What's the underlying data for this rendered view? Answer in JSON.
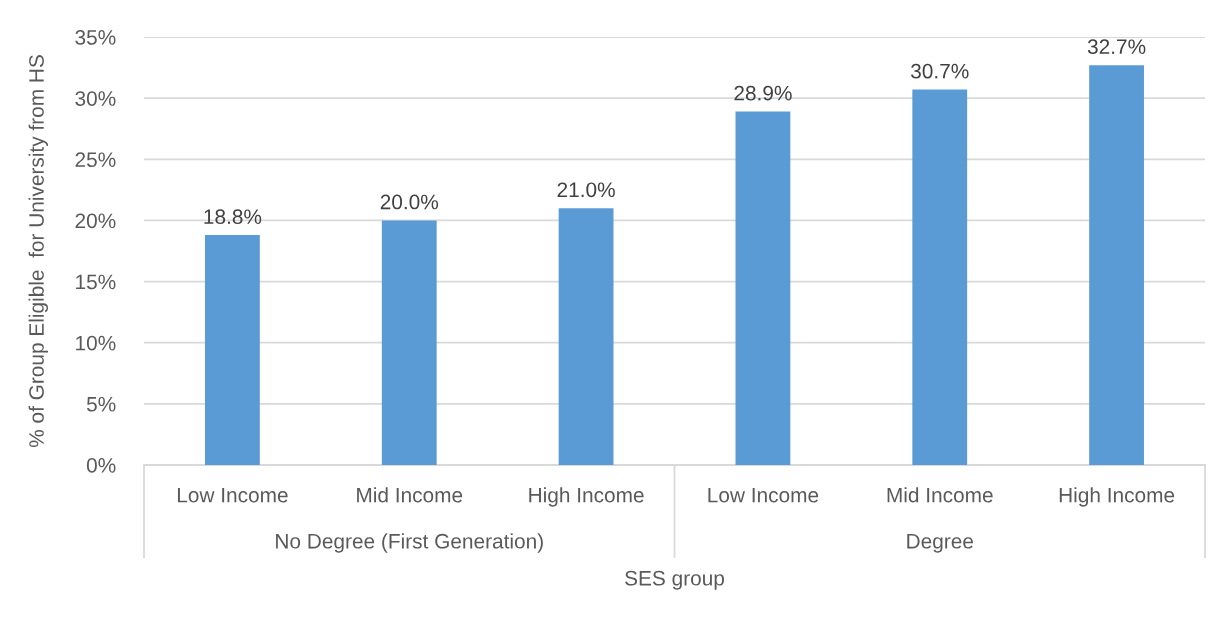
{
  "chart_data": {
    "type": "bar",
    "xlabel": "SES group",
    "ylabel": "% of Group Eligible  for University from HS",
    "categories": [
      "Low Income",
      "Mid Income",
      "High Income",
      "Low Income",
      "Mid Income",
      "High Income"
    ],
    "values": [
      18.8,
      20.0,
      21.0,
      28.9,
      30.7,
      32.7
    ],
    "value_labels": [
      "18.8%",
      "20.0%",
      "21.0%",
      "28.9%",
      "30.7%",
      "32.7%"
    ],
    "color": "#5b9bd5",
    "ylim": [
      0,
      35
    ],
    "yticks": [
      {
        "value": 0,
        "label": "0%"
      },
      {
        "value": 5,
        "label": "5%"
      },
      {
        "value": 10,
        "label": "10%"
      },
      {
        "value": 15,
        "label": "15%"
      },
      {
        "value": 20,
        "label": "20%"
      },
      {
        "value": 25,
        "label": "25%"
      },
      {
        "value": 30,
        "label": "30%"
      },
      {
        "value": 35,
        "label": "35%"
      }
    ],
    "grid": "y",
    "annotations": [
      "No Degree (First Generation)",
      "Degree"
    ]
  }
}
